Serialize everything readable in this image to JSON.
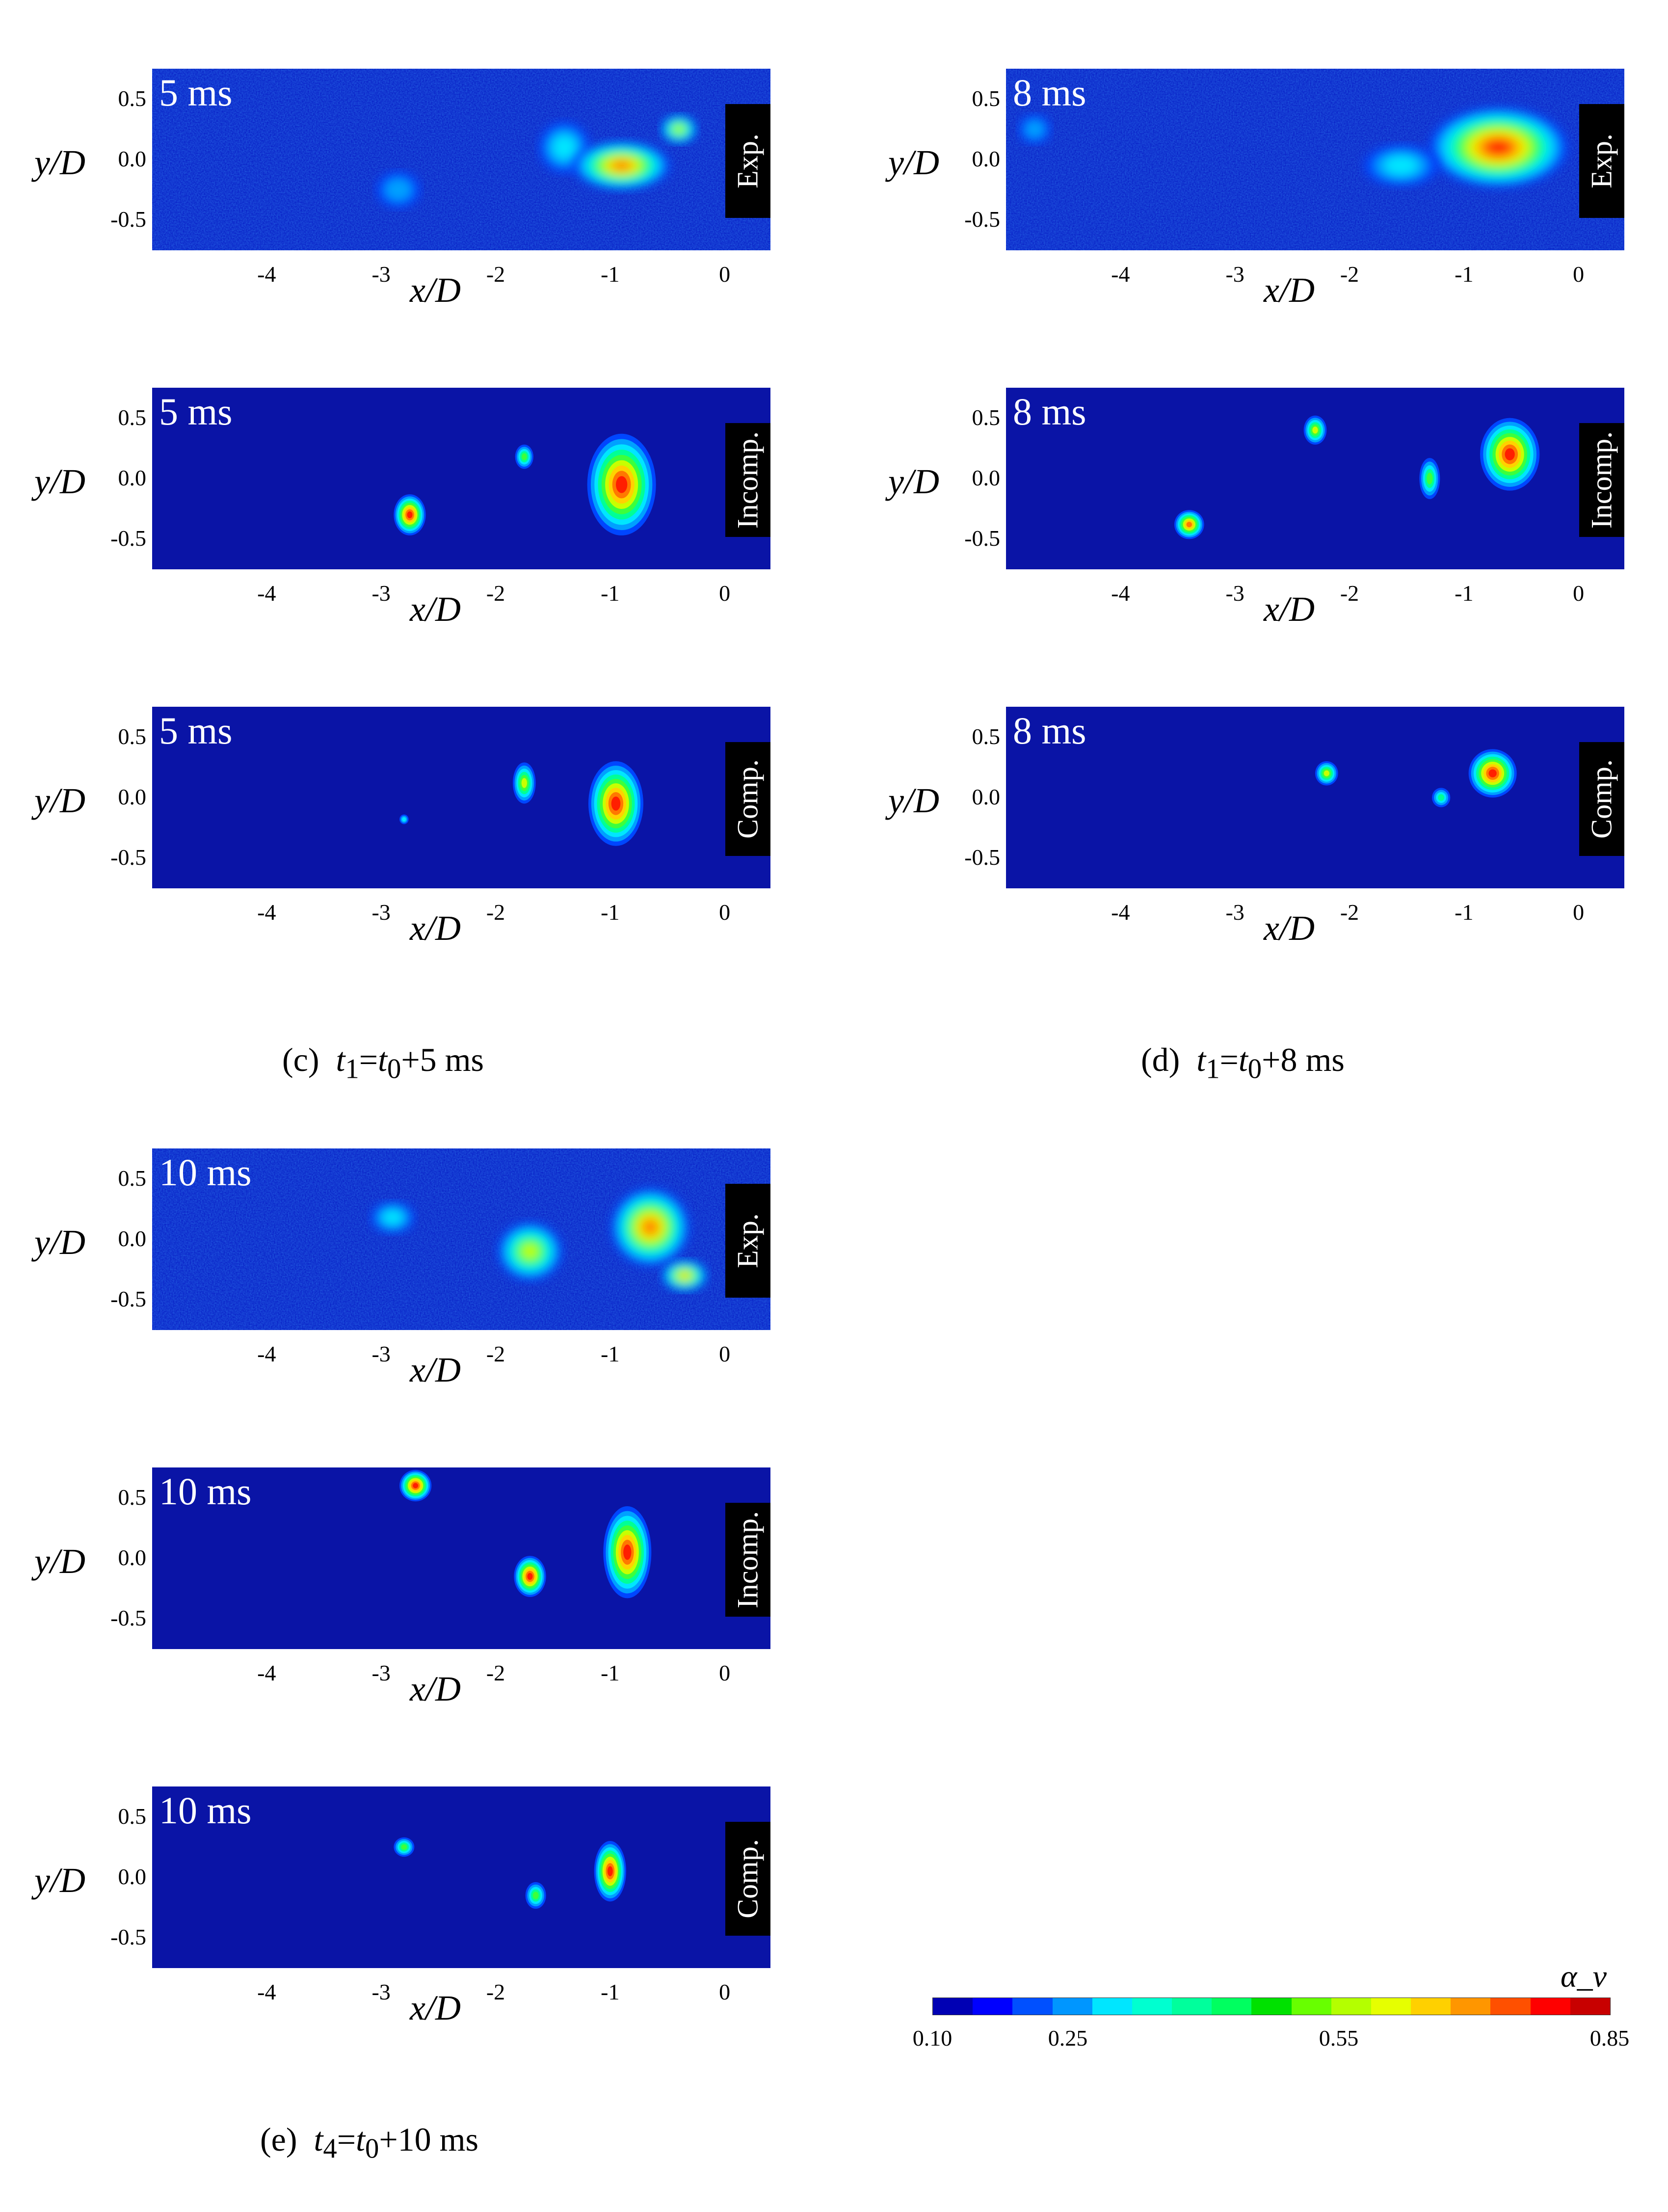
{
  "axes": {
    "y_label": "y/D",
    "x_label": "x/D",
    "y_ticks": [
      "0.5",
      "0.0",
      "-0.5"
    ],
    "x_ticks": [
      "-4",
      "-3",
      "-2",
      "-1",
      "0"
    ]
  },
  "panels": [
    {
      "time": "5 ms",
      "tag": "Exp.",
      "noisy": true,
      "blobs": [
        [
          -1.4,
          0.1,
          0.22,
          0.21,
          0.28
        ],
        [
          -2.85,
          -0.25,
          0.19,
          0.15,
          0.24
        ],
        [
          -0.9,
          -0.05,
          0.42,
          0.2,
          0.82
        ],
        [
          -0.4,
          0.25,
          0.16,
          0.12,
          0.6
        ]
      ]
    },
    {
      "time": "8 ms",
      "tag": "Exp.",
      "noisy": true,
      "blobs": [
        [
          -0.7,
          0.1,
          0.6,
          0.33,
          0.85
        ],
        [
          -1.55,
          -0.05,
          0.32,
          0.17,
          0.32
        ],
        [
          -4.75,
          0.25,
          0.14,
          0.12,
          0.2
        ]
      ]
    },
    {
      "time": "5 ms",
      "tag": "Incomp.",
      "noisy": false,
      "blobs": [
        [
          -0.9,
          -0.05,
          0.3,
          0.42,
          0.9
        ],
        [
          -2.75,
          -0.3,
          0.14,
          0.17,
          0.86
        ],
        [
          -1.75,
          0.18,
          0.08,
          0.1,
          0.5
        ]
      ]
    },
    {
      "time": "8 ms",
      "tag": "Incomp.",
      "noisy": false,
      "blobs": [
        [
          -0.6,
          0.2,
          0.26,
          0.3,
          0.9
        ],
        [
          -3.4,
          -0.38,
          0.13,
          0.12,
          0.82
        ],
        [
          -1.3,
          0.0,
          0.09,
          0.17,
          0.45
        ],
        [
          -2.3,
          0.4,
          0.1,
          0.12,
          0.6
        ]
      ]
    },
    {
      "time": "5 ms",
      "tag": "Comp.",
      "noisy": false,
      "blobs": [
        [
          -0.95,
          -0.05,
          0.24,
          0.35,
          0.9
        ],
        [
          -1.75,
          0.12,
          0.1,
          0.17,
          0.6
        ],
        [
          -2.8,
          -0.18,
          0.04,
          0.04,
          0.25
        ]
      ]
    },
    {
      "time": "8 ms",
      "tag": "Comp.",
      "noisy": false,
      "blobs": [
        [
          -0.75,
          0.2,
          0.21,
          0.2,
          0.9
        ],
        [
          -2.2,
          0.2,
          0.1,
          0.1,
          0.58
        ],
        [
          -1.2,
          0.0,
          0.08,
          0.08,
          0.4
        ]
      ]
    },
    {
      "time": "10 ms",
      "tag": "Exp.",
      "noisy": true,
      "blobs": [
        [
          -0.65,
          0.1,
          0.34,
          0.32,
          0.84
        ],
        [
          -1.7,
          -0.1,
          0.28,
          0.24,
          0.62
        ],
        [
          -0.35,
          -0.3,
          0.2,
          0.13,
          0.7
        ],
        [
          -2.9,
          0.18,
          0.19,
          0.13,
          0.3
        ]
      ]
    },
    {
      "time": "10 ms",
      "tag": "Incomp.",
      "noisy": false,
      "blobs": [
        [
          -0.85,
          0.05,
          0.21,
          0.38,
          0.9
        ],
        [
          -2.7,
          0.6,
          0.14,
          0.13,
          0.85
        ],
        [
          -1.7,
          -0.15,
          0.14,
          0.17,
          0.87
        ]
      ]
    },
    {
      "time": "10 ms",
      "tag": "Comp.",
      "noisy": false,
      "blobs": [
        [
          -1.0,
          0.05,
          0.14,
          0.25,
          0.88
        ],
        [
          -2.8,
          0.25,
          0.09,
          0.08,
          0.45
        ],
        [
          -1.65,
          -0.15,
          0.09,
          0.11,
          0.5
        ]
      ]
    }
  ],
  "captions": {
    "c": {
      "prefix": "(c)",
      "t_sub": "1",
      "t0_sub": "0",
      "suffix": "+5 ms"
    },
    "d": {
      "prefix": "(d)",
      "t_sub": "1",
      "t0_sub": "0",
      "suffix": "+8 ms"
    },
    "e": {
      "prefix": "(e)",
      "t_sub": "4",
      "t0_sub": "0",
      "suffix": "+10 ms"
    }
  },
  "colorbar": {
    "title": "α_v",
    "ticks": [
      "0.10",
      "0.25",
      "0.55",
      "0.85"
    ],
    "tick_values": [
      0.1,
      0.25,
      0.55,
      0.85
    ],
    "range": [
      0.1,
      0.85
    ],
    "colors": [
      "#0000b4",
      "#0000ff",
      "#0050ff",
      "#0096ff",
      "#00e6ff",
      "#00ffd0",
      "#00ff9c",
      "#00ff60",
      "#00e100",
      "#68ff00",
      "#b4ff00",
      "#e6ff00",
      "#ffd000",
      "#ff9600",
      "#ff5000",
      "#ff0000",
      "#c80000"
    ]
  }
}
